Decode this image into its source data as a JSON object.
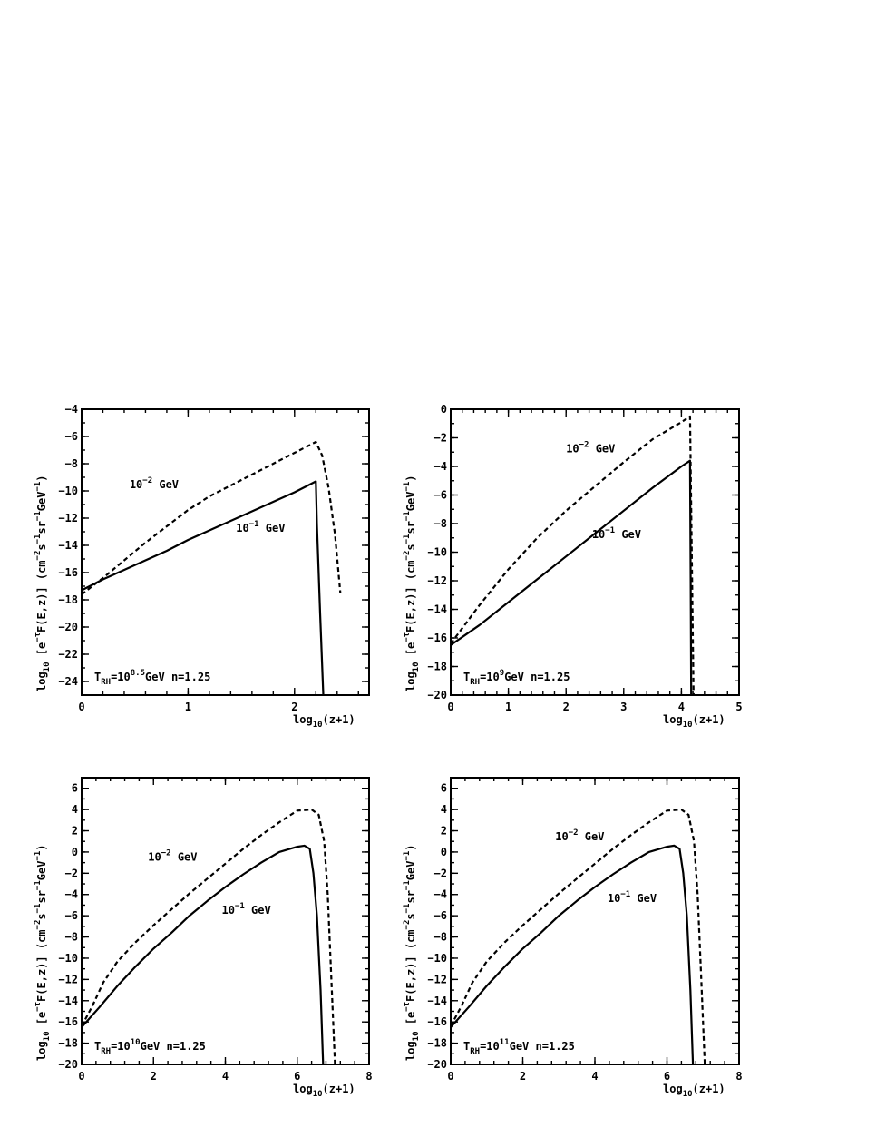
{
  "chart_data": [
    {
      "type": "line",
      "xlabel": "log_10(z+1)",
      "ylabel": "log_10 [e^-τ F(E,z)] (cm^-2 s^-1 sr^-1 GeV^-1)",
      "xlim": [
        0,
        2.7
      ],
      "ylim": [
        -25,
        -4
      ],
      "xticks": [
        0,
        1,
        2
      ],
      "yticks": [
        -24,
        -22,
        -20,
        -18,
        -16,
        -14,
        -12,
        -10,
        -8,
        -6,
        -4
      ],
      "annotation": {
        "t_base": "T",
        "t_sub": "RH",
        "t_eq": "=10",
        "t_exp": "8.5",
        "t_unit": "GeV",
        "n": "n=1.25"
      },
      "series": [
        {
          "name": "10^-1 GeV",
          "style": "solid",
          "x": [
            0,
            0.2,
            0.4,
            0.6,
            0.8,
            1.0,
            1.2,
            1.4,
            1.6,
            1.8,
            2.0,
            2.1,
            2.2,
            2.21,
            2.24,
            2.27
          ],
          "y": [
            -17.3,
            -16.5,
            -15.8,
            -15.1,
            -14.4,
            -13.6,
            -12.9,
            -12.2,
            -11.5,
            -10.8,
            -10.1,
            -9.7,
            -9.3,
            -12.5,
            -19,
            -25
          ]
        },
        {
          "name": "10^-2 GeV",
          "style": "dashed",
          "x": [
            0,
            0.2,
            0.4,
            0.6,
            0.8,
            1.0,
            1.2,
            1.4,
            1.6,
            1.8,
            2.0,
            2.1,
            2.2,
            2.26,
            2.32,
            2.38,
            2.43
          ],
          "y": [
            -17.6,
            -16.4,
            -15.1,
            -13.8,
            -12.6,
            -11.4,
            -10.4,
            -9.6,
            -8.8,
            -8.0,
            -7.2,
            -6.8,
            -6.4,
            -7.4,
            -9.8,
            -13.2,
            -17.5
          ]
        }
      ],
      "labels": [
        {
          "base": "10",
          "exp": "-2",
          "unit": "GeV",
          "x": 0.45,
          "y": -9.8
        },
        {
          "base": "10",
          "exp": "-1",
          "unit": "GeV",
          "x": 1.45,
          "y": -13.0
        }
      ]
    },
    {
      "type": "line",
      "xlabel": "log_10(z+1)",
      "ylabel": "log_10 [e^-τ F(E,z)] (cm^-2 s^-1 sr^-1 GeV^-1)",
      "xlim": [
        0,
        5
      ],
      "ylim": [
        -20,
        0
      ],
      "xticks": [
        0,
        1,
        2,
        3,
        4,
        5
      ],
      "yticks": [
        -20,
        -18,
        -16,
        -14,
        -12,
        -10,
        -8,
        -6,
        -4,
        -2,
        0
      ],
      "annotation": {
        "t_base": "T",
        "t_sub": "RH",
        "t_eq": "=10",
        "t_exp": "9",
        "t_unit": "GeV",
        "n": "n=1.25"
      },
      "series": [
        {
          "name": "10^-1 GeV",
          "style": "solid",
          "x": [
            0,
            0.5,
            1.0,
            1.5,
            2.0,
            2.5,
            3.0,
            3.5,
            4.0,
            4.15,
            4.16,
            4.17
          ],
          "y": [
            -16.5,
            -15.1,
            -13.5,
            -11.9,
            -10.3,
            -8.7,
            -7.1,
            -5.5,
            -4.0,
            -3.6,
            -12,
            -20
          ]
        },
        {
          "name": "10^-2 GeV",
          "style": "dashed",
          "x": [
            0,
            0.5,
            1.0,
            1.5,
            2.0,
            2.5,
            3.0,
            3.5,
            4.0,
            4.15,
            4.18,
            4.21
          ],
          "y": [
            -16.4,
            -13.7,
            -11.2,
            -9.0,
            -7.1,
            -5.4,
            -3.7,
            -2.1,
            -0.9,
            -0.5,
            -10,
            -20
          ]
        }
      ],
      "labels": [
        {
          "base": "10",
          "exp": "-2",
          "unit": "GeV",
          "x": 2.0,
          "y": -3.0
        },
        {
          "base": "10",
          "exp": "-1",
          "unit": "GeV",
          "x": 2.45,
          "y": -9.0
        }
      ]
    },
    {
      "type": "line",
      "xlabel": "log_10(z+1)",
      "ylabel": "log_10 [e^-τ F(E,z)] (cm^-2 s^-1 sr^-1 GeV^-1)",
      "xlim": [
        0,
        8
      ],
      "ylim": [
        -20,
        7
      ],
      "xticks": [
        0,
        2,
        4,
        6,
        8
      ],
      "yticks": [
        -20,
        -18,
        -16,
        -14,
        -12,
        -10,
        -8,
        -6,
        -4,
        -2,
        0,
        2,
        4,
        6
      ],
      "annotation": {
        "t_base": "T",
        "t_sub": "RH",
        "t_eq": "=10",
        "t_exp": "10",
        "t_unit": "GeV",
        "n": "n=1.25"
      },
      "series": [
        {
          "name": "10^-1 GeV",
          "style": "solid",
          "x": [
            0,
            0.5,
            1,
            1.5,
            2,
            2.5,
            3,
            3.5,
            4,
            4.5,
            5,
            5.5,
            6,
            6.2,
            6.35,
            6.45,
            6.55,
            6.65,
            6.72
          ],
          "y": [
            -16.5,
            -14.6,
            -12.6,
            -10.8,
            -9.1,
            -7.6,
            -6.0,
            -4.6,
            -3.3,
            -2.1,
            -1.0,
            0.0,
            0.5,
            0.6,
            0.3,
            -2.0,
            -6.0,
            -13.0,
            -20
          ]
        },
        {
          "name": "10^-2 GeV",
          "style": "dashed",
          "x": [
            0,
            0.3,
            0.6,
            1,
            1.5,
            2,
            2.5,
            3,
            3.5,
            4,
            4.5,
            5,
            5.5,
            6,
            6.4,
            6.6,
            6.75,
            6.85,
            6.95,
            7.05
          ],
          "y": [
            -16.4,
            -14.5,
            -12.3,
            -10.3,
            -8.5,
            -6.9,
            -5.4,
            -3.9,
            -2.5,
            -1.1,
            0.3,
            1.6,
            2.8,
            3.9,
            4.0,
            3.5,
            1.0,
            -4.0,
            -12.0,
            -20
          ]
        }
      ],
      "labels": [
        {
          "base": "10",
          "exp": "-2",
          "unit": "GeV",
          "x": 1.85,
          "y": -0.8
        },
        {
          "base": "10",
          "exp": "-1",
          "unit": "GeV",
          "x": 3.9,
          "y": -5.8
        }
      ]
    },
    {
      "type": "line",
      "xlabel": "log_10(z+1)",
      "ylabel": "log_10 [e^-τ F(E,z)] (cm^-2 s^-1 sr^-1 GeV^-1)",
      "xlim": [
        0,
        8
      ],
      "ylim": [
        -20,
        7
      ],
      "xticks": [
        0,
        2,
        4,
        6,
        8
      ],
      "yticks": [
        -20,
        -18,
        -16,
        -14,
        -12,
        -10,
        -8,
        -6,
        -4,
        -2,
        0,
        2,
        4,
        6
      ],
      "annotation": {
        "t_base": "T",
        "t_sub": "RH",
        "t_eq": "=10",
        "t_exp": "11",
        "t_unit": "GeV",
        "n": "n=1.25"
      },
      "series": [
        {
          "name": "10^-1 GeV",
          "style": "solid",
          "x": [
            0,
            0.5,
            1,
            1.5,
            2,
            2.5,
            3,
            3.5,
            4,
            4.5,
            5,
            5.5,
            6,
            6.2,
            6.35,
            6.45,
            6.55,
            6.65,
            6.72
          ],
          "y": [
            -16.5,
            -14.6,
            -12.6,
            -10.8,
            -9.1,
            -7.6,
            -6.0,
            -4.6,
            -3.3,
            -2.1,
            -1.0,
            0.0,
            0.5,
            0.6,
            0.3,
            -2.0,
            -6.0,
            -13.0,
            -20
          ]
        },
        {
          "name": "10^-2 GeV",
          "style": "dashed",
          "x": [
            0,
            0.3,
            0.6,
            1,
            1.5,
            2,
            2.5,
            3,
            3.5,
            4,
            4.5,
            5,
            5.5,
            6,
            6.4,
            6.6,
            6.75,
            6.85,
            6.95,
            7.05
          ],
          "y": [
            -16.4,
            -14.5,
            -12.3,
            -10.3,
            -8.5,
            -6.9,
            -5.4,
            -3.9,
            -2.5,
            -1.1,
            0.3,
            1.6,
            2.8,
            3.9,
            4.0,
            3.5,
            1.0,
            -4.0,
            -12.0,
            -20
          ]
        }
      ],
      "labels": [
        {
          "base": "10",
          "exp": "-2",
          "unit": "GeV",
          "x": 2.9,
          "y": 1.1
        },
        {
          "base": "10",
          "exp": "-1",
          "unit": "GeV",
          "x": 4.35,
          "y": -4.7
        }
      ]
    }
  ]
}
